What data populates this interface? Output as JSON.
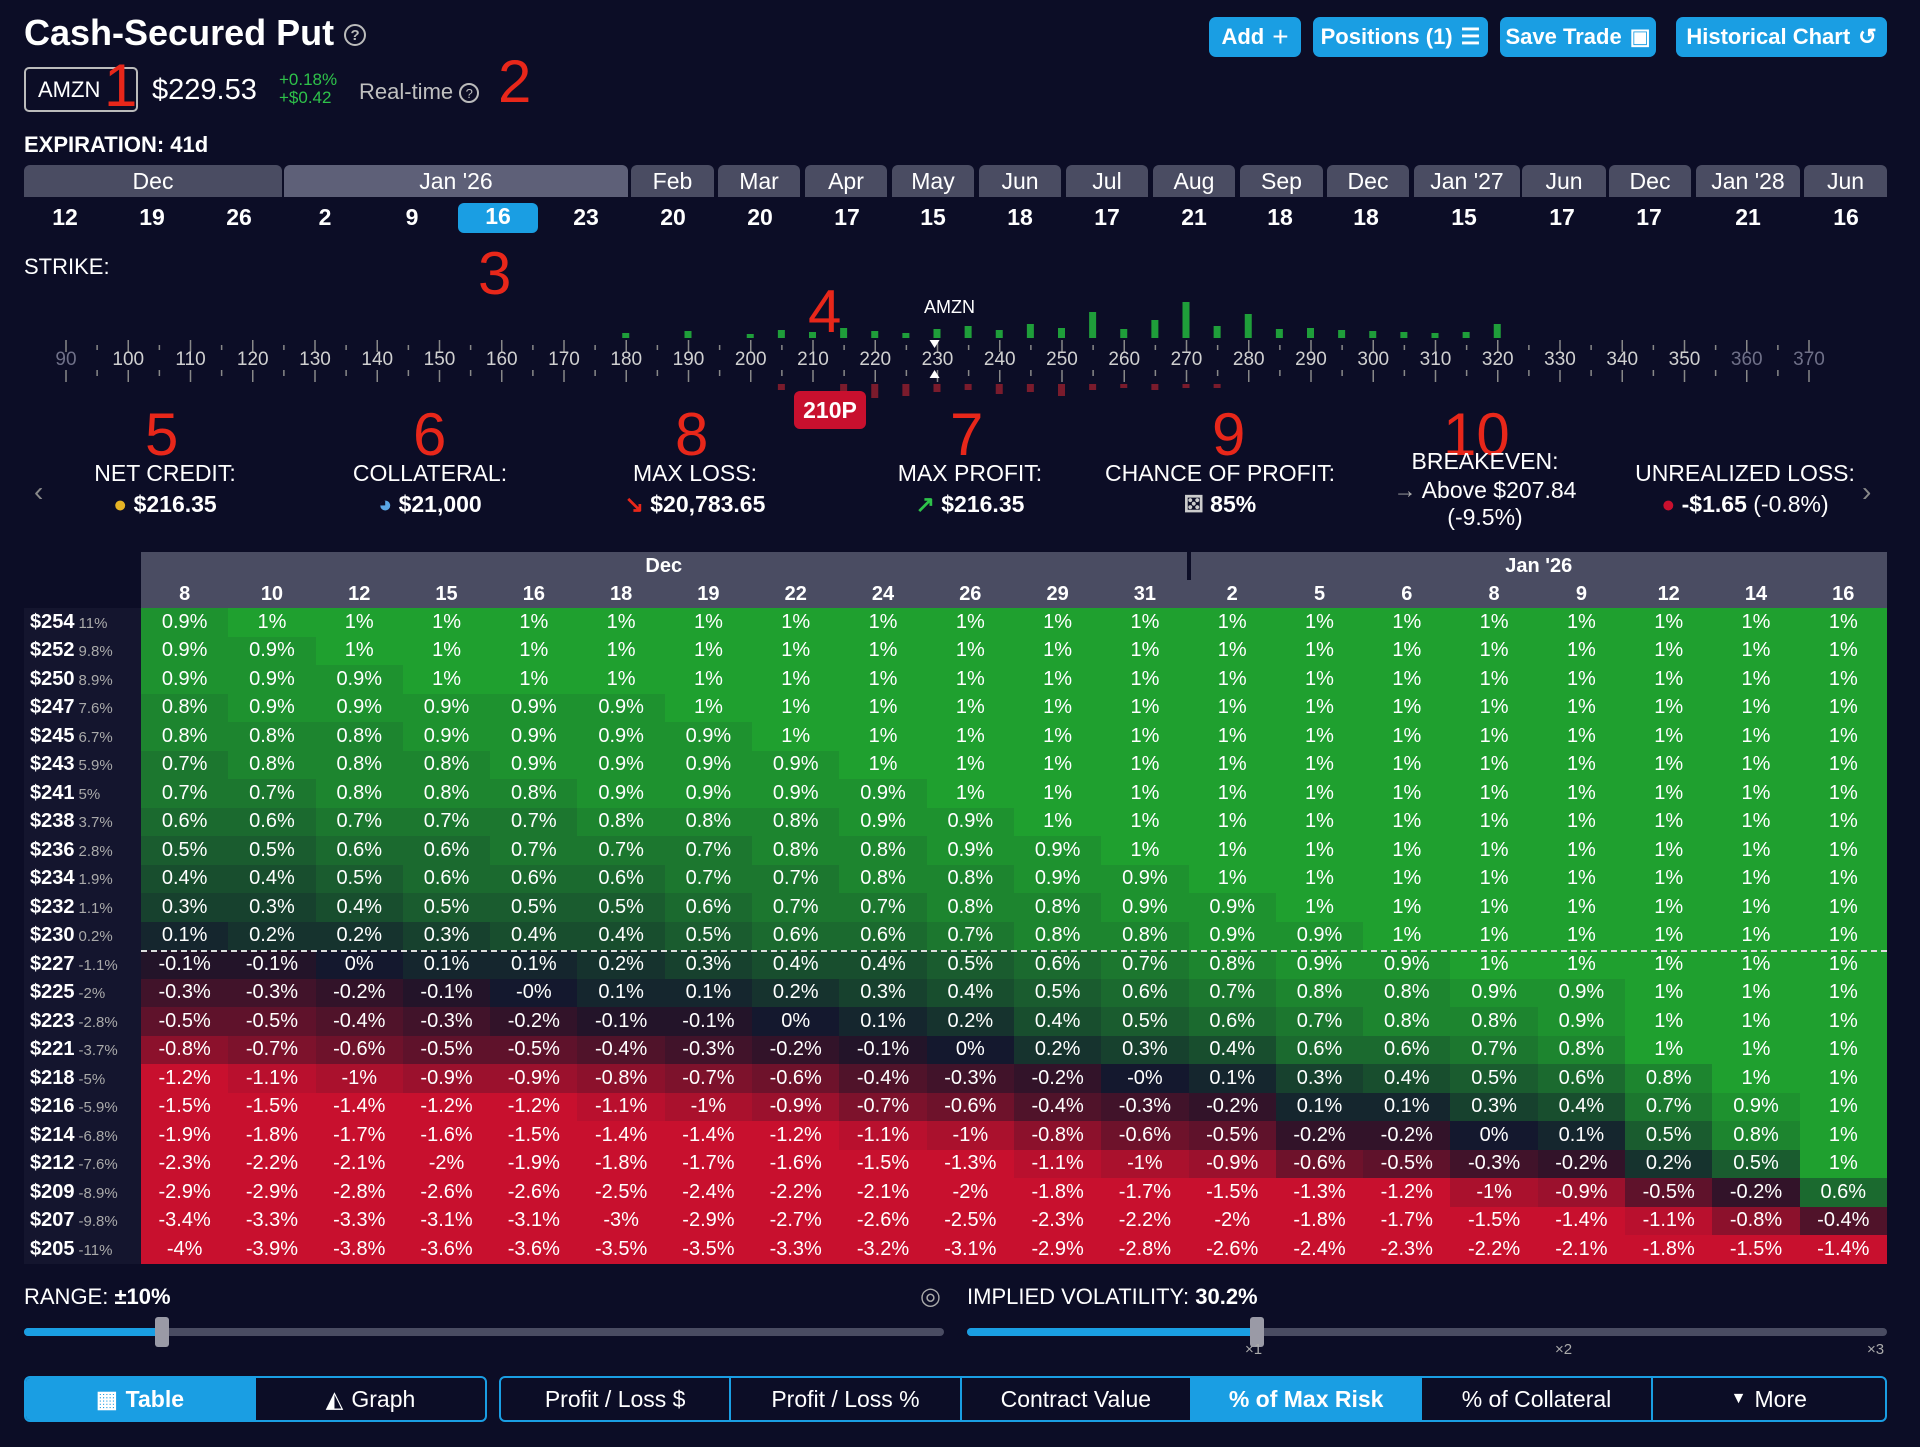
{
  "header": {
    "title": "Cash-Secured Put",
    "help": "?",
    "buttons": [
      {
        "label": "Add",
        "icon": "plus-icon"
      },
      {
        "label": "Positions (1)",
        "icon": "list-icon"
      },
      {
        "label": "Save Trade",
        "icon": "save-icon"
      },
      {
        "label": "Historical Chart",
        "icon": "history-icon"
      }
    ]
  },
  "quote": {
    "ticker": "AMZN",
    "price": "$229.53",
    "change_pct": "+0.18%",
    "change_abs": "+$0.42",
    "mode": "Real-time"
  },
  "annotations": [
    "1",
    "2",
    "3",
    "4",
    "5",
    "6",
    "8",
    "7",
    "9",
    "10"
  ],
  "expiration": {
    "label": "EXPIRATION:",
    "value": "41d",
    "months": [
      "Dec",
      "Jan '26",
      "Feb",
      "Mar",
      "Apr",
      "May",
      "Jun",
      "Jul",
      "Aug",
      "Sep",
      "Dec",
      "Jan '27",
      "Jun",
      "Dec",
      "Jan '28",
      "Jun"
    ],
    "days": [
      "12",
      "19",
      "26",
      "2",
      "9",
      "16",
      "23",
      "20",
      "20",
      "17",
      "15",
      "18",
      "17",
      "21",
      "18",
      "18",
      "15",
      "17",
      "17",
      "21",
      "16"
    ],
    "selected_day": "16"
  },
  "strike": {
    "label": "STRIKE:",
    "underlying": "AMZN",
    "labels": [
      "90",
      "100",
      "110",
      "120",
      "130",
      "140",
      "150",
      "160",
      "170",
      "180",
      "190",
      "200",
      "210",
      "220",
      "230",
      "240",
      "250",
      "260",
      "270",
      "280",
      "290",
      "300",
      "310",
      "320",
      "330",
      "340",
      "350",
      "360",
      "370"
    ],
    "selected": "210P"
  },
  "stats": [
    {
      "label": "NET CREDIT:",
      "value": "$216.35",
      "icon": "coins-icon"
    },
    {
      "label": "COLLATERAL:",
      "value": "$21,000",
      "icon": "pie-icon"
    },
    {
      "label": "MAX LOSS:",
      "value": "$20,783.65",
      "icon": "down-arrow-icon"
    },
    {
      "label": "MAX PROFIT:",
      "value": "$216.35",
      "icon": "up-arrow-icon"
    },
    {
      "label": "CHANCE OF PROFIT:",
      "value": "85%",
      "icon": "dice-icon"
    },
    {
      "label": "BREAKEVEN:",
      "value": "Above $207.84",
      "sub": "(-9.5%)",
      "icon": "right-arrow-icon"
    },
    {
      "label": "UNREALIZED LOSS:",
      "value": "-$1.65",
      "sub": "(-0.8%)",
      "icon": "money-bag-icon"
    }
  ],
  "table": {
    "month_headers": [
      "Dec",
      "Jan '26"
    ],
    "days": [
      "8",
      "10",
      "12",
      "15",
      "16",
      "18",
      "19",
      "22",
      "24",
      "26",
      "29",
      "31",
      "2",
      "5",
      "6",
      "8",
      "9",
      "12",
      "14",
      "16"
    ],
    "rows": [
      {
        "price": "$254",
        "pct": "11%",
        "cells": [
          "0.9%",
          "1%",
          "1%",
          "1%",
          "1%",
          "1%",
          "1%",
          "1%",
          "1%",
          "1%",
          "1%",
          "1%",
          "1%",
          "1%",
          "1%",
          "1%",
          "1%",
          "1%",
          "1%",
          "1%"
        ]
      },
      {
        "price": "$252",
        "pct": "9.8%",
        "cells": [
          "0.9%",
          "0.9%",
          "1%",
          "1%",
          "1%",
          "1%",
          "1%",
          "1%",
          "1%",
          "1%",
          "1%",
          "1%",
          "1%",
          "1%",
          "1%",
          "1%",
          "1%",
          "1%",
          "1%",
          "1%"
        ]
      },
      {
        "price": "$250",
        "pct": "8.9%",
        "cells": [
          "0.9%",
          "0.9%",
          "0.9%",
          "1%",
          "1%",
          "1%",
          "1%",
          "1%",
          "1%",
          "1%",
          "1%",
          "1%",
          "1%",
          "1%",
          "1%",
          "1%",
          "1%",
          "1%",
          "1%",
          "1%"
        ]
      },
      {
        "price": "$247",
        "pct": "7.6%",
        "cells": [
          "0.8%",
          "0.9%",
          "0.9%",
          "0.9%",
          "0.9%",
          "0.9%",
          "1%",
          "1%",
          "1%",
          "1%",
          "1%",
          "1%",
          "1%",
          "1%",
          "1%",
          "1%",
          "1%",
          "1%",
          "1%",
          "1%"
        ]
      },
      {
        "price": "$245",
        "pct": "6.7%",
        "cells": [
          "0.8%",
          "0.8%",
          "0.8%",
          "0.9%",
          "0.9%",
          "0.9%",
          "0.9%",
          "1%",
          "1%",
          "1%",
          "1%",
          "1%",
          "1%",
          "1%",
          "1%",
          "1%",
          "1%",
          "1%",
          "1%",
          "1%"
        ]
      },
      {
        "price": "$243",
        "pct": "5.9%",
        "cells": [
          "0.7%",
          "0.8%",
          "0.8%",
          "0.8%",
          "0.9%",
          "0.9%",
          "0.9%",
          "0.9%",
          "1%",
          "1%",
          "1%",
          "1%",
          "1%",
          "1%",
          "1%",
          "1%",
          "1%",
          "1%",
          "1%",
          "1%"
        ]
      },
      {
        "price": "$241",
        "pct": "5%",
        "cells": [
          "0.7%",
          "0.7%",
          "0.8%",
          "0.8%",
          "0.8%",
          "0.9%",
          "0.9%",
          "0.9%",
          "0.9%",
          "1%",
          "1%",
          "1%",
          "1%",
          "1%",
          "1%",
          "1%",
          "1%",
          "1%",
          "1%",
          "1%"
        ]
      },
      {
        "price": "$238",
        "pct": "3.7%",
        "cells": [
          "0.6%",
          "0.6%",
          "0.7%",
          "0.7%",
          "0.7%",
          "0.8%",
          "0.8%",
          "0.8%",
          "0.9%",
          "0.9%",
          "1%",
          "1%",
          "1%",
          "1%",
          "1%",
          "1%",
          "1%",
          "1%",
          "1%",
          "1%"
        ]
      },
      {
        "price": "$236",
        "pct": "2.8%",
        "cells": [
          "0.5%",
          "0.5%",
          "0.6%",
          "0.6%",
          "0.7%",
          "0.7%",
          "0.7%",
          "0.8%",
          "0.8%",
          "0.9%",
          "0.9%",
          "1%",
          "1%",
          "1%",
          "1%",
          "1%",
          "1%",
          "1%",
          "1%",
          "1%"
        ]
      },
      {
        "price": "$234",
        "pct": "1.9%",
        "cells": [
          "0.4%",
          "0.4%",
          "0.5%",
          "0.6%",
          "0.6%",
          "0.6%",
          "0.7%",
          "0.7%",
          "0.8%",
          "0.8%",
          "0.9%",
          "0.9%",
          "1%",
          "1%",
          "1%",
          "1%",
          "1%",
          "1%",
          "1%",
          "1%"
        ]
      },
      {
        "price": "$232",
        "pct": "1.1%",
        "cells": [
          "0.3%",
          "0.3%",
          "0.4%",
          "0.5%",
          "0.5%",
          "0.5%",
          "0.6%",
          "0.7%",
          "0.7%",
          "0.8%",
          "0.8%",
          "0.9%",
          "0.9%",
          "1%",
          "1%",
          "1%",
          "1%",
          "1%",
          "1%",
          "1%"
        ]
      },
      {
        "price": "$230",
        "pct": "0.2%",
        "cells": [
          "0.1%",
          "0.2%",
          "0.2%",
          "0.3%",
          "0.4%",
          "0.4%",
          "0.5%",
          "0.6%",
          "0.6%",
          "0.7%",
          "0.8%",
          "0.8%",
          "0.9%",
          "0.9%",
          "1%",
          "1%",
          "1%",
          "1%",
          "1%",
          "1%"
        ]
      },
      {
        "price": "$227",
        "pct": "-1.1%",
        "cells": [
          "-0.1%",
          "-0.1%",
          "0%",
          "0.1%",
          "0.1%",
          "0.2%",
          "0.3%",
          "0.4%",
          "0.4%",
          "0.5%",
          "0.6%",
          "0.7%",
          "0.8%",
          "0.9%",
          "0.9%",
          "1%",
          "1%",
          "1%",
          "1%",
          "1%"
        ]
      },
      {
        "price": "$225",
        "pct": "-2%",
        "cells": [
          "-0.3%",
          "-0.3%",
          "-0.2%",
          "-0.1%",
          "-0%",
          "0.1%",
          "0.1%",
          "0.2%",
          "0.3%",
          "0.4%",
          "0.5%",
          "0.6%",
          "0.7%",
          "0.8%",
          "0.8%",
          "0.9%",
          "0.9%",
          "1%",
          "1%",
          "1%"
        ]
      },
      {
        "price": "$223",
        "pct": "-2.8%",
        "cells": [
          "-0.5%",
          "-0.5%",
          "-0.4%",
          "-0.3%",
          "-0.2%",
          "-0.1%",
          "-0.1%",
          "0%",
          "0.1%",
          "0.2%",
          "0.4%",
          "0.5%",
          "0.6%",
          "0.7%",
          "0.8%",
          "0.8%",
          "0.9%",
          "1%",
          "1%",
          "1%"
        ]
      },
      {
        "price": "$221",
        "pct": "-3.7%",
        "cells": [
          "-0.8%",
          "-0.7%",
          "-0.6%",
          "-0.5%",
          "-0.5%",
          "-0.4%",
          "-0.3%",
          "-0.2%",
          "-0.1%",
          "0%",
          "0.2%",
          "0.3%",
          "0.4%",
          "0.6%",
          "0.6%",
          "0.7%",
          "0.8%",
          "1%",
          "1%",
          "1%"
        ]
      },
      {
        "price": "$218",
        "pct": "-5%",
        "cells": [
          "-1.2%",
          "-1.1%",
          "-1%",
          "-0.9%",
          "-0.9%",
          "-0.8%",
          "-0.7%",
          "-0.6%",
          "-0.4%",
          "-0.3%",
          "-0.2%",
          "-0%",
          "0.1%",
          "0.3%",
          "0.4%",
          "0.5%",
          "0.6%",
          "0.8%",
          "1%",
          "1%"
        ]
      },
      {
        "price": "$216",
        "pct": "-5.9%",
        "cells": [
          "-1.5%",
          "-1.5%",
          "-1.4%",
          "-1.2%",
          "-1.2%",
          "-1.1%",
          "-1%",
          "-0.9%",
          "-0.7%",
          "-0.6%",
          "-0.4%",
          "-0.3%",
          "-0.2%",
          "0.1%",
          "0.1%",
          "0.3%",
          "0.4%",
          "0.7%",
          "0.9%",
          "1%"
        ]
      },
      {
        "price": "$214",
        "pct": "-6.8%",
        "cells": [
          "-1.9%",
          "-1.8%",
          "-1.7%",
          "-1.6%",
          "-1.5%",
          "-1.4%",
          "-1.4%",
          "-1.2%",
          "-1.1%",
          "-1%",
          "-0.8%",
          "-0.6%",
          "-0.5%",
          "-0.2%",
          "-0.2%",
          "0%",
          "0.1%",
          "0.5%",
          "0.8%",
          "1%"
        ]
      },
      {
        "price": "$212",
        "pct": "-7.6%",
        "cells": [
          "-2.3%",
          "-2.2%",
          "-2.1%",
          "-2%",
          "-1.9%",
          "-1.8%",
          "-1.7%",
          "-1.6%",
          "-1.5%",
          "-1.3%",
          "-1.1%",
          "-1%",
          "-0.9%",
          "-0.6%",
          "-0.5%",
          "-0.3%",
          "-0.2%",
          "0.2%",
          "0.5%",
          "1%"
        ]
      },
      {
        "price": "$209",
        "pct": "-8.9%",
        "cells": [
          "-2.9%",
          "-2.9%",
          "-2.8%",
          "-2.6%",
          "-2.6%",
          "-2.5%",
          "-2.4%",
          "-2.2%",
          "-2.1%",
          "-2%",
          "-1.8%",
          "-1.7%",
          "-1.5%",
          "-1.3%",
          "-1.2%",
          "-1%",
          "-0.9%",
          "-0.5%",
          "-0.2%",
          "0.6%"
        ]
      },
      {
        "price": "$207",
        "pct": "-9.8%",
        "cells": [
          "-3.4%",
          "-3.3%",
          "-3.3%",
          "-3.1%",
          "-3.1%",
          "-3%",
          "-2.9%",
          "-2.7%",
          "-2.6%",
          "-2.5%",
          "-2.3%",
          "-2.2%",
          "-2%",
          "-1.8%",
          "-1.7%",
          "-1.5%",
          "-1.4%",
          "-1.1%",
          "-0.8%",
          "-0.4%"
        ]
      },
      {
        "price": "$205",
        "pct": "-11%",
        "cells": [
          "-4%",
          "-3.9%",
          "-3.8%",
          "-3.6%",
          "-3.6%",
          "-3.5%",
          "-3.5%",
          "-3.3%",
          "-3.2%",
          "-3.1%",
          "-2.9%",
          "-2.8%",
          "-2.6%",
          "-2.4%",
          "-2.3%",
          "-2.2%",
          "-2.1%",
          "-1.8%",
          "-1.5%",
          "-1.4%"
        ]
      }
    ]
  },
  "range": {
    "label": "RANGE:",
    "value": "±10%",
    "fraction": 0.15
  },
  "iv": {
    "label": "IMPLIED VOLATILITY:",
    "value": "30.2%",
    "fraction": 0.315,
    "ticks": [
      "×1",
      "×2",
      "×3"
    ]
  },
  "view_tabs": [
    {
      "label": "Table",
      "icon": "table-icon",
      "active": true
    },
    {
      "label": "Graph",
      "icon": "graph-icon",
      "active": false
    }
  ],
  "metric_tabs": [
    {
      "label": "Profit / Loss $",
      "active": false
    },
    {
      "label": "Profit / Loss %",
      "active": false
    },
    {
      "label": "Contract Value",
      "active": false
    },
    {
      "label": "% of Max Risk",
      "active": true
    },
    {
      "label": "% of Collateral",
      "active": false
    },
    {
      "label": "More",
      "active": false
    }
  ],
  "colors": {
    "accent": "#1a9ee3",
    "bg": "#0c0d26",
    "profit": "#1fa02f",
    "loss": "#c8102e",
    "change": "#2ec24a"
  }
}
